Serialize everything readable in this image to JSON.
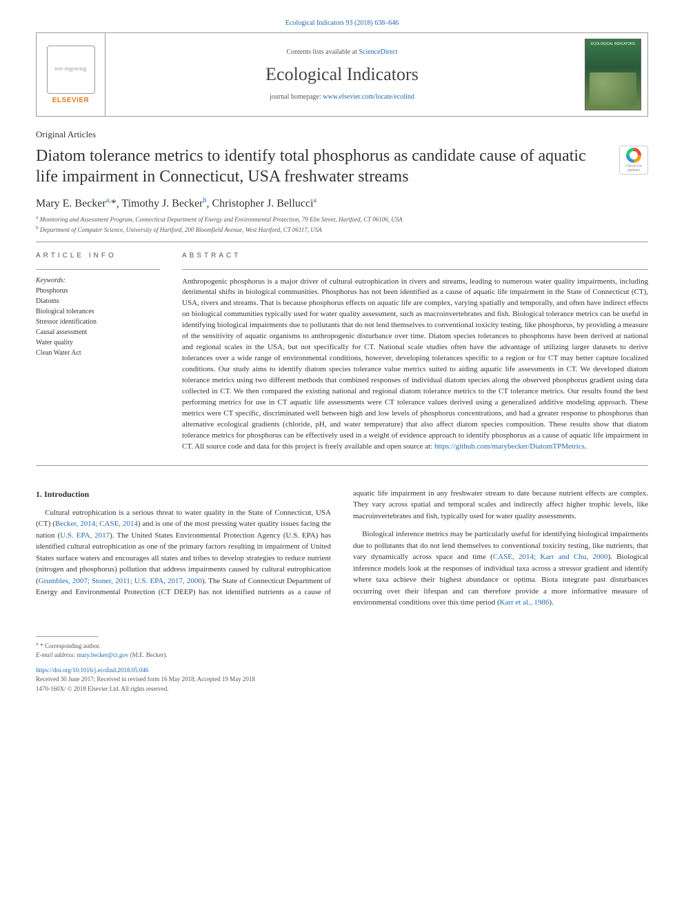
{
  "topbar": "Ecological Indicators 93 (2018) 638–646",
  "header": {
    "contents_prefix": "Contents lists available at ",
    "contents_link": "ScienceDirect",
    "journal_name": "Ecological Indicators",
    "homepage_prefix": "journal homepage: ",
    "homepage_link": "www.elsevier.com/locate/ecolind",
    "elsevier_label": "ELSEVIER"
  },
  "article_type": "Original Articles",
  "title": "Diatom tolerance metrics to identify total phosphorus as candidate cause of aquatic life impairment in Connecticut, USA freshwater streams",
  "crossmark_label": "Check for updates",
  "authors_html": "Mary E. Becker<sup>a,</sup>*, Timothy J. Becker<sup>b</sup>, Christopher J. Bellucci<sup>a</sup>",
  "affiliations": [
    {
      "sup": "a",
      "text": "Monitoring and Assessment Program, Connecticut Department of Energy and Environmental Protection, 79 Elm Street, Hartford, CT 06106, USA"
    },
    {
      "sup": "b",
      "text": "Department of Computer Science, University of Hartford, 200 Bloomfield Avenue, West Hartford, CT 06117, USA"
    }
  ],
  "article_info_label": "ARTICLE INFO",
  "abstract_label": "ABSTRACT",
  "keywords_label": "Keywords:",
  "keywords": [
    "Phosphorus",
    "Diatoms",
    "Biological tolerances",
    "Stressor identification",
    "Causal assessment",
    "Water quality",
    "Clean Water Act"
  ],
  "abstract": "Anthropogenic phosphorus is a major driver of cultural eutrophication in rivers and streams, leading to numerous water quality impairments, including detrimental shifts in biological communities. Phosphorus has not been identified as a cause of aquatic life impairment in the State of Connecticut (CT), USA, rivers and streams. That is because phosphorus effects on aquatic life are complex, varying spatially and temporally, and often have indirect effects on biological communities typically used for water quality assessment, such as macroinvertebrates and fish. Biological tolerance metrics can be useful in identifying biological impairments due to pollutants that do not lend themselves to conventional toxicity testing, like phosphorus, by providing a measure of the sensitivity of aquatic organisms to anthropogenic disturbance over time. Diatom species tolerances to phosphorus have been derived at national and regional scales in the USA, but not specifically for CT. National scale studies often have the advantage of utilizing larger datasets to derive tolerances over a wide range of environmental conditions, however, developing tolerances specific to a region or for CT may better capture localized conditions. Our study aims to identify diatom species tolerance value metrics suited to aiding aquatic life assessments in CT. We developed diatom tolerance metrics using two different methods that combined responses of individual diatom species along the observed phosphorus gradient using data collected in CT. We then compared the existing national and regional diatom tolerance metrics to the CT tolerance metrics. Our results found the best performing metrics for use in CT aquatic life assessments were CT tolerance values derived using a generalized additive modeling approach. These metrics were CT specific, discriminated well between high and low levels of phosphorus concentrations, and had a greater response to phosphorus than alternative ecological gradients (chloride, pH, and water temperature) that also affect diatom species composition. These results show that diatom tolerance metrics for phosphorus can be effectively used in a weight of evidence approach to identify phosphorus as a cause of aquatic life impairment in CT. All source code and data for this project is freely available and open source at: ",
  "abstract_link": "https://github.com/marybecker/DiatomTPMetrics",
  "intro_heading": "1. Introduction",
  "intro_p1_a": "Cultural eutrophication is a serious threat to water quality in the State of Connecticut, USA (CT) (",
  "intro_p1_cite1": "Becker, 2014; CASE, 2014",
  "intro_p1_b": ") and is one of the most pressing water quality issues facing the nation (",
  "intro_p1_cite2": "U.S. EPA, 2017",
  "intro_p1_c": "). The United States Environmental Protection Agency (U.S. EPA) has identified cultural eutrophication as one of the primary factors resulting in impairment of United States surface waters and encourages all states and tribes to develop strategies to reduce nutrient (nitrogen and phosphorus) pollution that address impairments caused by cultural eutrophication (",
  "intro_p1_cite3": "Grumbles, 2007; Stoner, 2011; U.S. EPA, 2017, 2000",
  "intro_p1_d": "). The State of Connecticut Department of Energy and Environmental Protection (CT DEEP) has not identified nutrients as a cause of aquatic ",
  "intro_p1_e": "life impairment in any freshwater stream to date because nutrient effects are complex. They vary across spatial and temporal scales and indirectly affect higher trophic levels, like macroinvertebrates and fish, typically used for water quality assessments.",
  "intro_p2_a": "Biological inference metrics may be particularly useful for identifying biological impairments due to pollutants that do not lend themselves to conventional toxicity testing, like nutrients, that vary dynamically across space and time (",
  "intro_p2_cite1": "CASE, 2014; Karr and Chu, 2000",
  "intro_p2_b": "). Biological inference models look at the responses of individual taxa across a stressor gradient and identify where taxa achieve their highest abundance or optima. Biota integrate past disturbances occurring over their lifespan and can therefore provide a more informative measure of environmental conditions over this time period (",
  "intro_p2_cite2": "Karr et al., 1986",
  "intro_p2_c": "). ",
  "footer": {
    "corr_author": "* Corresponding author.",
    "email_label": "E-mail address: ",
    "email": "mary.becker@ct.gov",
    "email_suffix": " (M.E. Becker).",
    "doi": "https://doi.org/10.1016/j.ecolind.2018.05.046",
    "received": "Received 30 June 2017; Received in revised form 16 May 2018; Accepted 19 May 2018",
    "copyright": "1470-160X/ © 2018 Elsevier Ltd. All rights reserved."
  },
  "colors": {
    "link": "#2068b0",
    "elsevier_orange": "#e67817",
    "text": "#333333",
    "muted": "#555555",
    "rule": "#999999"
  }
}
